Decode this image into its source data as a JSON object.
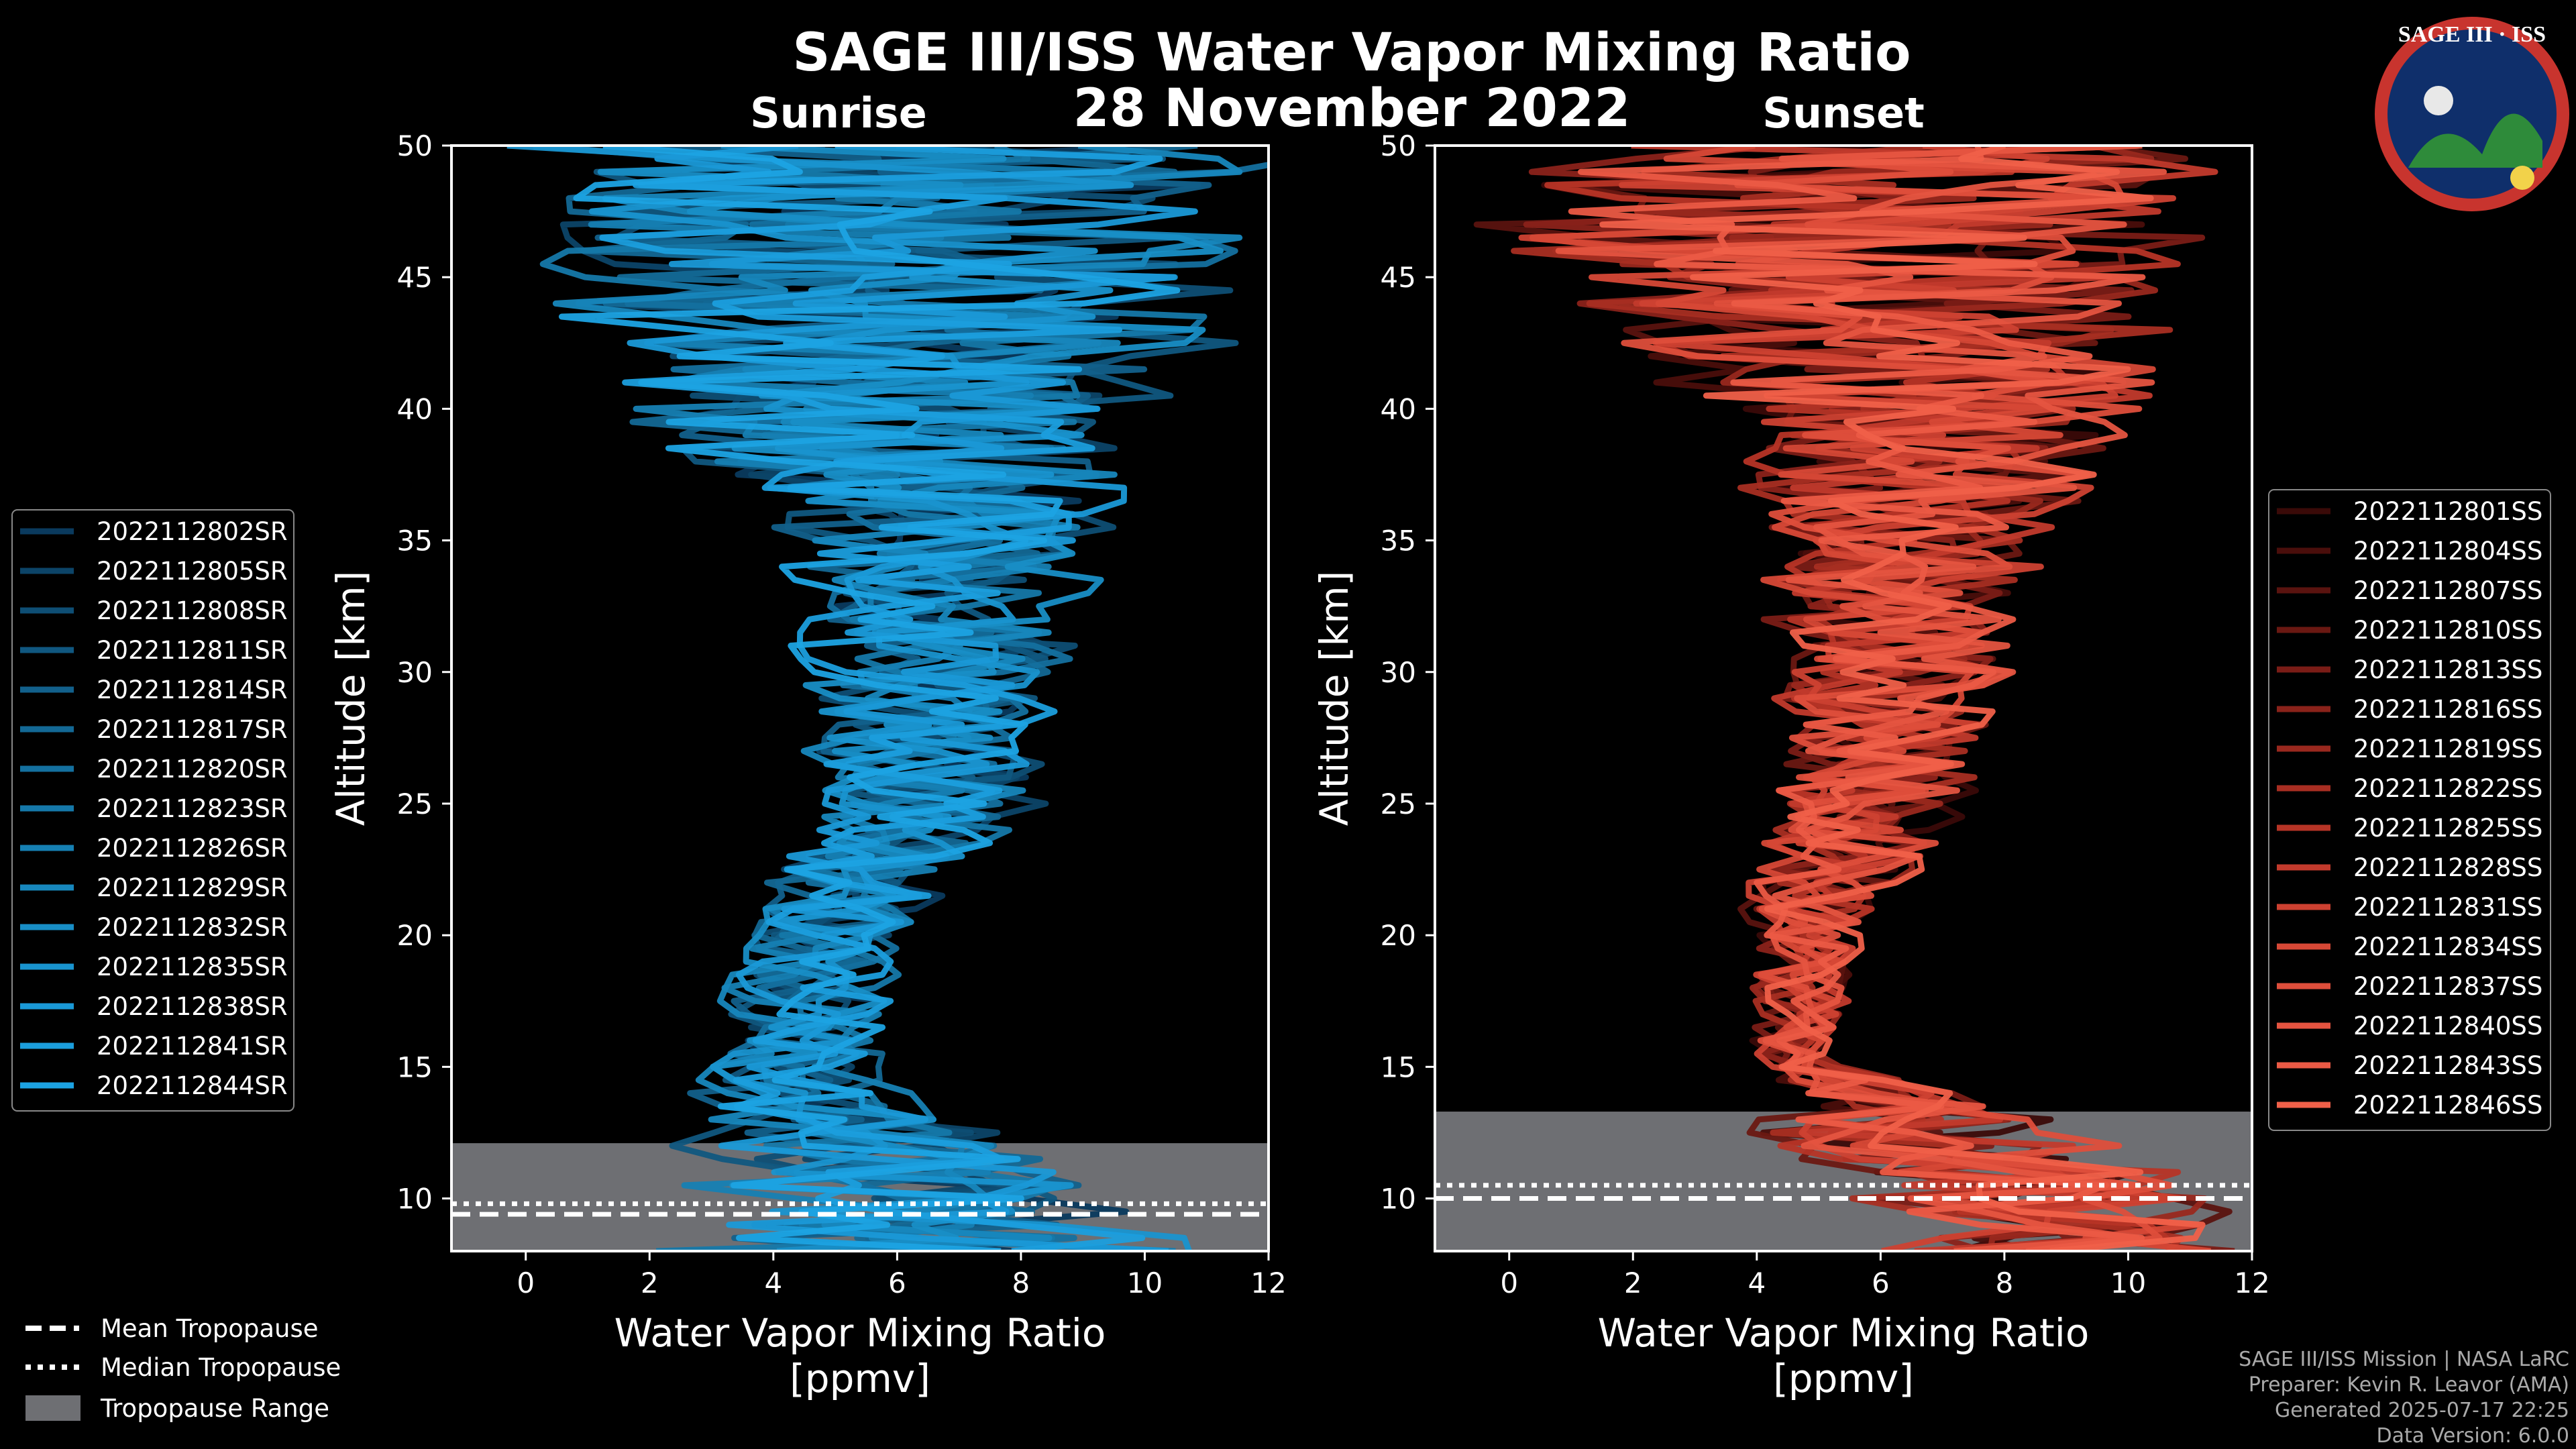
{
  "title": "SAGE III/ISS Water Vapor Mixing Ratio",
  "date": "28 November 2022",
  "logo_text": "SAGE III · ISS",
  "colors": {
    "background": "#000000",
    "tropo_range": "#6e6f73",
    "sunrise_line": "#1a8fd6",
    "sunset_line": "#e8574a"
  },
  "chart_data": [
    {
      "panel": "sunrise",
      "type": "line",
      "subtitle": "Sunrise",
      "xlabel": "Water Vapor Mixing Ratio\n[ppmv]",
      "xlabel_lines": [
        "Water Vapor Mixing Ratio",
        "[ppmv]"
      ],
      "ylabel": "Altitude [km]",
      "xlim": [
        -1.2,
        12
      ],
      "ylim": [
        8,
        50
      ],
      "xticks": [
        0,
        2,
        4,
        6,
        8,
        10,
        12
      ],
      "yticks": [
        10,
        15,
        20,
        25,
        30,
        35,
        40,
        45,
        50
      ],
      "tropopause": {
        "mean_km": 9.4,
        "median_km": 9.8,
        "range_km": [
          8,
          12.1
        ]
      },
      "legend_position": "left",
      "series": [
        "2022112802SR",
        "2022112805SR",
        "2022112808SR",
        "2022112811SR",
        "2022112814SR",
        "2022112817SR",
        "2022112820SR",
        "2022112823SR",
        "2022112826SR",
        "2022112829SR",
        "2022112832SR",
        "2022112835SR",
        "2022112838SR",
        "2022112841SR",
        "2022112844SR"
      ],
      "approx_profile": [
        {
          "alt": 9,
          "center": 6.5,
          "spread": 4.5
        },
        {
          "alt": 12,
          "center": 5.0,
          "spread": 3.5
        },
        {
          "alt": 15,
          "center": 4.3,
          "spread": 1.5
        },
        {
          "alt": 20,
          "center": 5.0,
          "spread": 1.8
        },
        {
          "alt": 25,
          "center": 6.5,
          "spread": 2.2
        },
        {
          "alt": 30,
          "center": 6.6,
          "spread": 2.5
        },
        {
          "alt": 35,
          "center": 6.8,
          "spread": 3.0
        },
        {
          "alt": 40,
          "center": 6.0,
          "spread": 5.5
        },
        {
          "alt": 45,
          "center": 6.0,
          "spread": 7.0
        },
        {
          "alt": 50,
          "center": 6.0,
          "spread": 7.5
        }
      ]
    },
    {
      "panel": "sunset",
      "type": "line",
      "subtitle": "Sunset",
      "xlabel": "Water Vapor Mixing Ratio\n[ppmv]",
      "xlabel_lines": [
        "Water Vapor Mixing Ratio",
        "[ppmv]"
      ],
      "ylabel": "Altitude [km]",
      "xlim": [
        -1.2,
        12
      ],
      "ylim": [
        8,
        50
      ],
      "xticks": [
        0,
        2,
        4,
        6,
        8,
        10,
        12
      ],
      "yticks": [
        10,
        15,
        20,
        25,
        30,
        35,
        40,
        45,
        50
      ],
      "tropopause": {
        "mean_km": 10.0,
        "median_km": 10.5,
        "range_km": [
          8,
          13.3
        ]
      },
      "legend_position": "right",
      "series": [
        "2022112801SS",
        "2022112804SS",
        "2022112807SS",
        "2022112810SS",
        "2022112813SS",
        "2022112816SS",
        "2022112819SS",
        "2022112822SS",
        "2022112825SS",
        "2022112828SS",
        "2022112831SS",
        "2022112834SS",
        "2022112837SS",
        "2022112840SS",
        "2022112843SS",
        "2022112846SS"
      ],
      "approx_profile": [
        {
          "alt": 9,
          "center": 9.0,
          "spread": 3.0
        },
        {
          "alt": 12,
          "center": 7.0,
          "spread": 4.0
        },
        {
          "alt": 15,
          "center": 4.6,
          "spread": 0.8
        },
        {
          "alt": 20,
          "center": 4.8,
          "spread": 1.2
        },
        {
          "alt": 25,
          "center": 5.8,
          "spread": 2.0
        },
        {
          "alt": 30,
          "center": 6.2,
          "spread": 2.2
        },
        {
          "alt": 35,
          "center": 6.5,
          "spread": 2.8
        },
        {
          "alt": 40,
          "center": 6.5,
          "spread": 4.5
        },
        {
          "alt": 45,
          "center": 5.5,
          "spread": 6.5
        },
        {
          "alt": 50,
          "center": 5.5,
          "spread": 7.0
        }
      ]
    }
  ],
  "tropo_legend": {
    "mean": "Mean Tropopause",
    "median": "Median Tropopause",
    "range": "Tropopause Range"
  },
  "footer": {
    "line1": "SAGE III/ISS Mission | NASA LaRC",
    "line2": "Preparer: Kevin R. Leavor (AMA)",
    "line3": "Generated 2025-07-17 22:25",
    "line4": "Data Version: 6.0.0"
  }
}
